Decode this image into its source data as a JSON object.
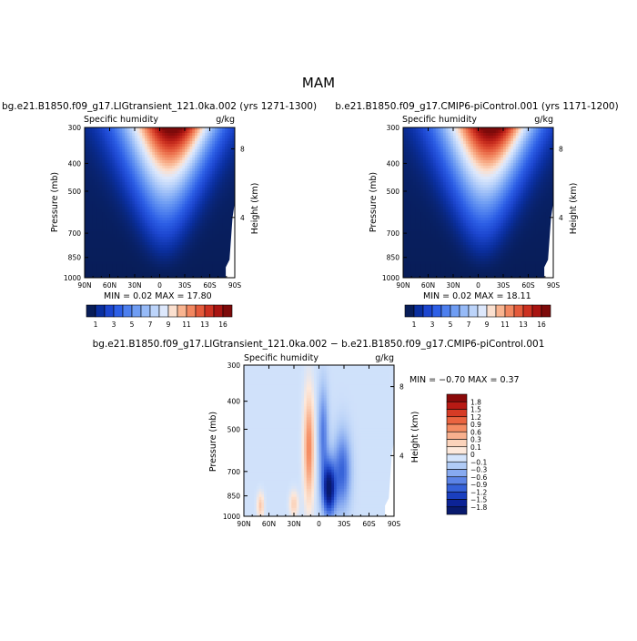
{
  "figure": {
    "title": "MAM"
  },
  "chart_data": [
    {
      "type": "heatmap",
      "id": "left",
      "title": "bg.e21.B1850.f09_g17.LIGtransient_121.0ka.002 (yrs 1271-1300)",
      "variable": "Specific humidity",
      "units": "g/kg",
      "xlabel": "",
      "ylabel": "Pressure (mb)",
      "ylabel_right": "Height (km)",
      "x_ticks": [
        "90N",
        "60N",
        "30N",
        "0",
        "30S",
        "60S",
        "90S"
      ],
      "y_ticks": [
        "300",
        "400",
        "500",
        "700",
        "850",
        "1000"
      ],
      "height_ticks": [
        "8",
        "4"
      ],
      "xlim": [
        90,
        -90
      ],
      "ylim": [
        1000,
        300
      ],
      "min_text": "MIN =    0.02   MAX =   17.80",
      "min": 0.02,
      "max": 17.8,
      "colorbar_labels": [
        "1",
        "3",
        "5",
        "7",
        "9",
        "11",
        "13",
        "16"
      ],
      "colorbar_colors": [
        "#081d58",
        "#0a2f9f",
        "#1c46cf",
        "#2d5fe6",
        "#4d7fee",
        "#6f9df3",
        "#96baf7",
        "#bcd4fa",
        "#dde8fc",
        "#fbe0cf",
        "#f9b490",
        "#f28760",
        "#e45a3b",
        "#cc3121",
        "#a81411",
        "#7d0a0a"
      ]
    },
    {
      "type": "heatmap",
      "id": "right",
      "title": "b.e21.B1850.f09_g17.CMIP6-piControl.001 (yrs 1171-1200)",
      "variable": "Specific humidity",
      "units": "g/kg",
      "xlabel": "",
      "ylabel": "Pressure (mb)",
      "ylabel_right": "Height (km)",
      "x_ticks": [
        "90N",
        "60N",
        "30N",
        "0",
        "30S",
        "60S",
        "90S"
      ],
      "y_ticks": [
        "300",
        "400",
        "500",
        "700",
        "850",
        "1000"
      ],
      "height_ticks": [
        "8",
        "4"
      ],
      "xlim": [
        90,
        -90
      ],
      "ylim": [
        1000,
        300
      ],
      "min_text": "MIN =    0.02   MAX =   18.11",
      "min": 0.02,
      "max": 18.11,
      "colorbar_labels": [
        "1",
        "3",
        "5",
        "7",
        "9",
        "11",
        "13",
        "16"
      ],
      "colorbar_colors": [
        "#081d58",
        "#0a2f9f",
        "#1c46cf",
        "#2d5fe6",
        "#4d7fee",
        "#6f9df3",
        "#96baf7",
        "#bcd4fa",
        "#dde8fc",
        "#fbe0cf",
        "#f9b490",
        "#f28760",
        "#e45a3b",
        "#cc3121",
        "#a81411",
        "#7d0a0a"
      ]
    },
    {
      "type": "heatmap",
      "id": "diff",
      "title": "bg.e21.B1850.f09_g17.LIGtransient_121.0ka.002 − b.e21.B1850.f09_g17.CMIP6-piControl.001",
      "variable": "Specific humidity",
      "units": "g/kg",
      "xlabel": "",
      "ylabel": "Pressure (mb)",
      "ylabel_right": "Height (km)",
      "x_ticks": [
        "90N",
        "60N",
        "30N",
        "0",
        "30S",
        "60S",
        "90S"
      ],
      "y_ticks": [
        "300",
        "400",
        "500",
        "700",
        "850",
        "1000"
      ],
      "height_ticks": [
        "8",
        "4"
      ],
      "xlim": [
        90,
        -90
      ],
      "ylim": [
        1000,
        300
      ],
      "min_text": "MIN =   −0.70   MAX =    0.37",
      "min": -0.7,
      "max": 0.37,
      "colorbar_labels": [
        "1.8",
        "1.5",
        "1.2",
        "0.9",
        "0.6",
        "0.3",
        "0.1",
        "0",
        "−0.1",
        "−0.3",
        "−0.6",
        "−0.9",
        "−1.2",
        "−1.5",
        "−1.8"
      ],
      "colorbar_colors": [
        "#8b0a0a",
        "#b81a14",
        "#d63b25",
        "#ea6440",
        "#f48c63",
        "#f8b08e",
        "#fbd3bb",
        "#fde9dc",
        "#d4e4fb",
        "#b0cbf6",
        "#87aaf0",
        "#5c84e6",
        "#3561d8",
        "#1a3fbf",
        "#0c2396",
        "#081a6e"
      ]
    }
  ]
}
